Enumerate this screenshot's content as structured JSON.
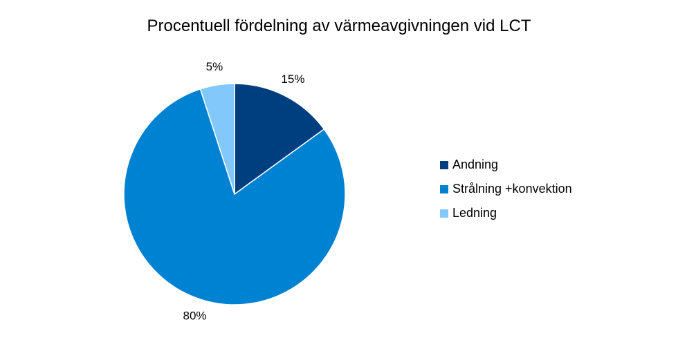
{
  "chart_data": {
    "type": "pie",
    "title": "Procentuell fördelning av värmeavgivningen vid LCT",
    "categories": [
      "Andning",
      "Strålning +konvektion",
      "Ledning"
    ],
    "values": [
      15,
      80,
      5
    ],
    "data_labels": [
      "15%",
      "80%",
      "5%"
    ],
    "colors": [
      "#003f7f",
      "#0082d2",
      "#82c8fa"
    ],
    "legend_position": "right"
  }
}
